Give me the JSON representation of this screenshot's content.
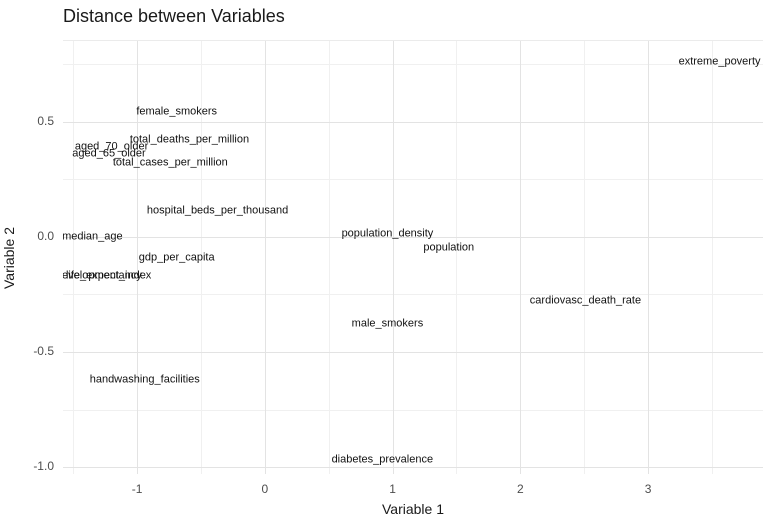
{
  "title": "Distance between Variables",
  "chart_data": {
    "type": "scatter",
    "title": "Distance between Variables",
    "subtitle": "",
    "xlabel": "Variable 1",
    "ylabel": "Variable 2",
    "xlim": [
      -1.58,
      3.9
    ],
    "ylim": [
      -1.03,
      0.85
    ],
    "x_ticks": [
      -1,
      0,
      1,
      2,
      3
    ],
    "x_tick_labels": [
      "-1",
      "0",
      "1",
      "2",
      "3"
    ],
    "y_ticks": [
      0.5,
      0.0,
      -0.5,
      -1.0
    ],
    "y_tick_labels": [
      "0.5",
      "0.0",
      "-0.5",
      "-1.0"
    ],
    "x_minor_breaks": [
      -1.5,
      -0.5,
      0.5,
      1.5,
      2.5,
      3.5
    ],
    "y_minor_breaks": [
      0.75,
      0.25,
      -0.25,
      -0.75
    ],
    "grid": "major-and-minor",
    "legend": false,
    "marker_style": "text-labels-only",
    "points": [
      {
        "label": "extreme_poverty",
        "x": 3.56,
        "y": 0.76
      },
      {
        "label": "female_smokers",
        "x": -0.69,
        "y": 0.54
      },
      {
        "label": "total_deaths_per_million",
        "x": -0.59,
        "y": 0.42
      },
      {
        "label": "aged_70_older",
        "x": -1.2,
        "y": 0.39
      },
      {
        "label": "aged_65_older",
        "x": -1.22,
        "y": 0.36
      },
      {
        "label": "total_cases_per_million",
        "x": -0.74,
        "y": 0.32
      },
      {
        "label": "hospital_beds_per_thousand",
        "x": -0.37,
        "y": 0.11
      },
      {
        "label": "median_age",
        "x": -1.35,
        "y": 0.0
      },
      {
        "label": "population_density",
        "x": 0.96,
        "y": 0.01
      },
      {
        "label": "population",
        "x": 1.44,
        "y": -0.05
      },
      {
        "label": "gdp_per_capita",
        "x": -0.69,
        "y": -0.09
      },
      {
        "label": "human_development_index",
        "x": -1.28,
        "y": -0.17,
        "clip_w": 100
      },
      {
        "label": "life_expectancy",
        "x": -1.26,
        "y": -0.17
      },
      {
        "label": "cardiovasc_death_rate",
        "x": 2.51,
        "y": -0.28
      },
      {
        "label": "male_smokers",
        "x": 0.96,
        "y": -0.38
      },
      {
        "label": "handwashing_facilities",
        "x": -0.94,
        "y": -0.62
      },
      {
        "label": "diabetes_prevalence",
        "x": 0.92,
        "y": -0.97
      }
    ],
    "colors": {
      "label_text": "#111111",
      "axis_text": "#4d4d4d",
      "title_text": "#1a1a1a",
      "grid_major": "#e3e3e3",
      "grid_minor": "#f0f0f0",
      "background": "#ffffff"
    }
  }
}
